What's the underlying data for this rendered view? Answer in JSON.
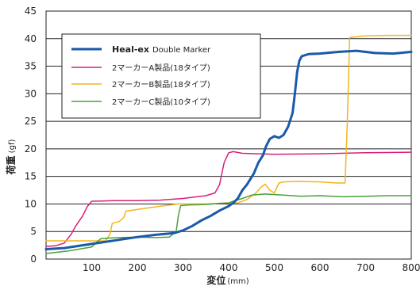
{
  "chart_data": {
    "type": "line",
    "xlabel": "変位",
    "xlabel_unit": "(mm)",
    "ylabel": "荷重",
    "ylabel_unit": "(gf)",
    "xlim": [
      0,
      800
    ],
    "ylim": [
      0,
      45
    ],
    "x_ticks": [
      100,
      200,
      300,
      400,
      500,
      600,
      700,
      800
    ],
    "y_ticks": [
      0,
      5,
      10,
      15,
      20,
      25,
      30,
      35,
      40,
      45
    ],
    "grid": "horizontal",
    "legend_position": "top-left",
    "series": [
      {
        "name_bold": "Heal-ex",
        "name_rest": "Double Marker",
        "color": "#1a5aa8",
        "width": 3,
        "points": [
          [
            0,
            1.8
          ],
          [
            40,
            2.0
          ],
          [
            80,
            2.5
          ],
          [
            120,
            3.0
          ],
          [
            160,
            3.5
          ],
          [
            200,
            4.0
          ],
          [
            240,
            4.4
          ],
          [
            280,
            4.7
          ],
          [
            300,
            5.2
          ],
          [
            320,
            6.0
          ],
          [
            340,
            7.0
          ],
          [
            360,
            7.8
          ],
          [
            380,
            8.8
          ],
          [
            400,
            9.6
          ],
          [
            410,
            10.2
          ],
          [
            420,
            11.0
          ],
          [
            430,
            12.5
          ],
          [
            440,
            13.5
          ],
          [
            455,
            15.5
          ],
          [
            465,
            17.5
          ],
          [
            475,
            18.8
          ],
          [
            482,
            20.5
          ],
          [
            490,
            21.8
          ],
          [
            500,
            22.3
          ],
          [
            510,
            22.0
          ],
          [
            520,
            22.5
          ],
          [
            530,
            24.0
          ],
          [
            540,
            26.5
          ],
          [
            545,
            30.0
          ],
          [
            550,
            34.0
          ],
          [
            555,
            36.0
          ],
          [
            560,
            36.8
          ],
          [
            575,
            37.2
          ],
          [
            600,
            37.3
          ],
          [
            640,
            37.6
          ],
          [
            680,
            37.8
          ],
          [
            720,
            37.4
          ],
          [
            760,
            37.3
          ],
          [
            800,
            37.6
          ]
        ]
      },
      {
        "name": "2マーカーA製品(18タイプ)",
        "color": "#d6217a",
        "width": 1.5,
        "points": [
          [
            0,
            2.3
          ],
          [
            20,
            2.4
          ],
          [
            40,
            2.9
          ],
          [
            55,
            4.5
          ],
          [
            65,
            6.0
          ],
          [
            80,
            7.8
          ],
          [
            90,
            9.5
          ],
          [
            100,
            10.5
          ],
          [
            150,
            10.6
          ],
          [
            200,
            10.6
          ],
          [
            250,
            10.7
          ],
          [
            300,
            11.0
          ],
          [
            350,
            11.5
          ],
          [
            370,
            12.0
          ],
          [
            380,
            13.5
          ],
          [
            390,
            17.5
          ],
          [
            400,
            19.3
          ],
          [
            410,
            19.5
          ],
          [
            430,
            19.2
          ],
          [
            500,
            19.0
          ],
          [
            600,
            19.1
          ],
          [
            700,
            19.3
          ],
          [
            800,
            19.4
          ]
        ]
      },
      {
        "name": "2マーカーB製品(18タイプ)",
        "color": "#f2b51f",
        "width": 1.5,
        "points": [
          [
            0,
            3.3
          ],
          [
            60,
            3.3
          ],
          [
            100,
            3.3
          ],
          [
            130,
            3.3
          ],
          [
            140,
            4.5
          ],
          [
            145,
            6.5
          ],
          [
            160,
            6.8
          ],
          [
            170,
            7.5
          ],
          [
            175,
            8.7
          ],
          [
            200,
            9.0
          ],
          [
            250,
            9.6
          ],
          [
            280,
            9.9
          ],
          [
            290,
            10.0
          ],
          [
            350,
            10.0
          ],
          [
            400,
            10.2
          ],
          [
            420,
            10.2
          ],
          [
            440,
            10.8
          ],
          [
            460,
            12.0
          ],
          [
            470,
            13.0
          ],
          [
            480,
            13.6
          ],
          [
            490,
            12.5
          ],
          [
            500,
            12.0
          ],
          [
            510,
            13.8
          ],
          [
            520,
            14.0
          ],
          [
            550,
            14.1
          ],
          [
            600,
            14.0
          ],
          [
            640,
            13.8
          ],
          [
            655,
            13.8
          ],
          [
            660,
            25.0
          ],
          [
            665,
            40.2
          ],
          [
            700,
            40.5
          ],
          [
            750,
            40.6
          ],
          [
            800,
            40.6
          ]
        ]
      },
      {
        "name": "2マーカーC製品(10タイプ)",
        "color": "#4aa03a",
        "width": 1.5,
        "points": [
          [
            0,
            1.0
          ],
          [
            50,
            1.5
          ],
          [
            100,
            2.2
          ],
          [
            110,
            3.0
          ],
          [
            120,
            3.7
          ],
          [
            135,
            3.8
          ],
          [
            160,
            3.9
          ],
          [
            200,
            4.0
          ],
          [
            240,
            3.9
          ],
          [
            270,
            4.0
          ],
          [
            285,
            5.0
          ],
          [
            290,
            8.0
          ],
          [
            295,
            9.7
          ],
          [
            310,
            9.8
          ],
          [
            350,
            9.9
          ],
          [
            380,
            10.1
          ],
          [
            400,
            10.2
          ],
          [
            410,
            10.5
          ],
          [
            430,
            11.0
          ],
          [
            450,
            11.6
          ],
          [
            480,
            11.8
          ],
          [
            520,
            11.6
          ],
          [
            560,
            11.4
          ],
          [
            600,
            11.5
          ],
          [
            650,
            11.3
          ],
          [
            700,
            11.4
          ],
          [
            750,
            11.5
          ],
          [
            800,
            11.5
          ]
        ]
      }
    ]
  }
}
